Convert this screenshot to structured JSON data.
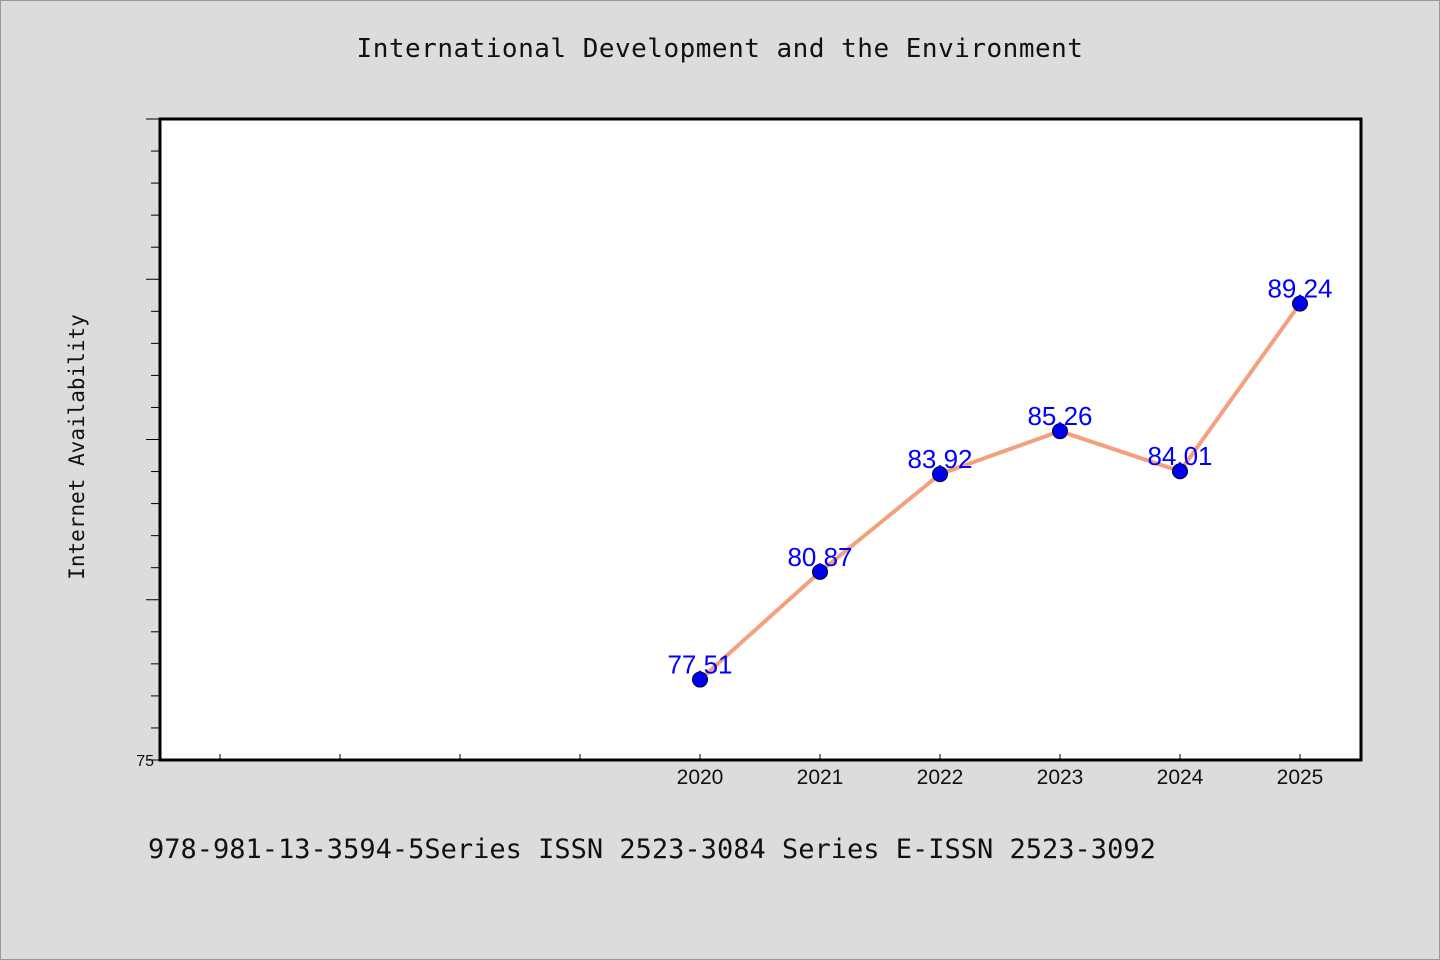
{
  "chart_data": {
    "type": "line",
    "title": "International Development and the Environment",
    "xlabel": "",
    "ylabel": "Internet Availability",
    "categories": [
      "2020",
      "2021",
      "2022",
      "2023",
      "2024",
      "2025"
    ],
    "x_axis_slots": 10,
    "x_first_category_slot": 4,
    "values": [
      77.51,
      80.87,
      83.92,
      85.26,
      84.01,
      89.24
    ],
    "data_labels": [
      "77.51",
      "80.87",
      "83.92",
      "85.26",
      "84.01",
      "89.24"
    ],
    "y_tick_labels": [
      "75"
    ],
    "ylim": [
      75,
      95
    ],
    "grid": false,
    "legend": "none",
    "colors": {
      "line": "#f4a07f",
      "marker": "#0000ee",
      "label": "#0000ff",
      "background": "#dcdcdc",
      "plot_background": "#ffffff"
    }
  },
  "footer": {
    "text": "978-981-13-3594-5Series ISSN 2523-3084 Series E-ISSN 2523-3092"
  }
}
